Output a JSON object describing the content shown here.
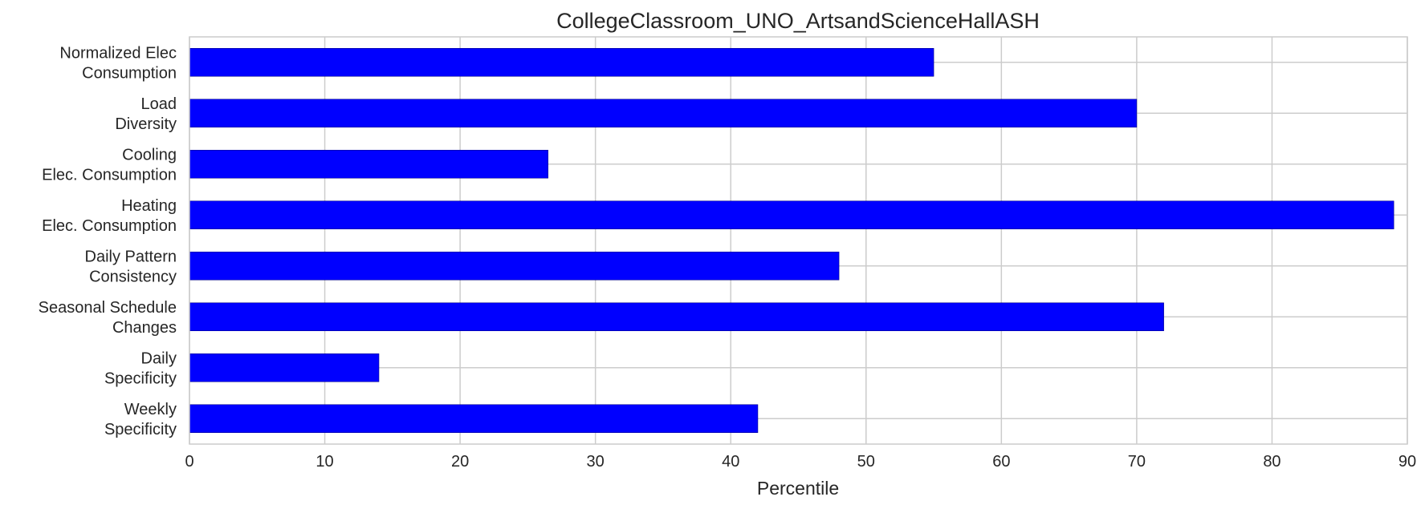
{
  "chart_data": {
    "type": "bar",
    "orientation": "horizontal",
    "title": "CollegeClassroom_UNO_ArtsandScienceHallASH",
    "xlabel": "Percentile",
    "ylabel": "",
    "xlim": [
      0,
      90
    ],
    "xticks": [
      0,
      10,
      20,
      30,
      40,
      50,
      60,
      70,
      80,
      90
    ],
    "grid": true,
    "bar_color": "#0000ff",
    "categories": [
      [
        "Normalized Elec",
        "Consumption"
      ],
      [
        "Load",
        "Diversity"
      ],
      [
        "Cooling",
        "Elec. Consumption"
      ],
      [
        "Heating",
        "Elec. Consumption"
      ],
      [
        "Daily Pattern",
        "Consistency"
      ],
      [
        "Seasonal Schedule",
        "Changes"
      ],
      [
        "Daily",
        "Specificity"
      ],
      [
        "Weekly",
        "Specificity"
      ]
    ],
    "values": [
      55,
      70,
      26.5,
      89,
      48,
      72,
      14,
      42
    ]
  }
}
